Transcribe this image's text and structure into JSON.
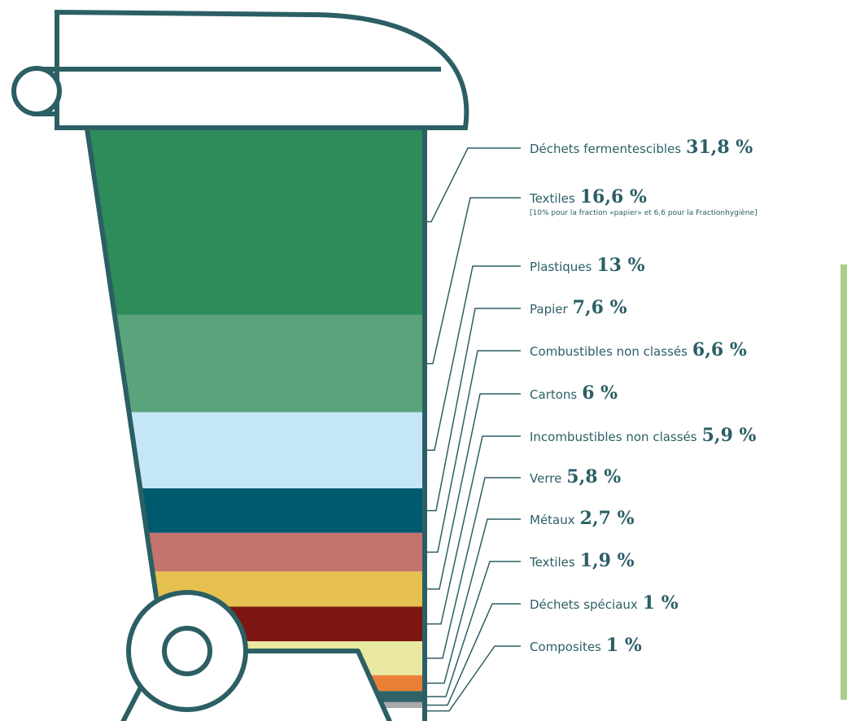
{
  "chart_data": {
    "type": "stack",
    "categories": [
      "Déchets fermentescibles",
      "Textiles",
      "Plastiques",
      "Papier",
      "Combustibles non classés",
      "Cartons",
      "Incombustibles non classés",
      "Verre",
      "Métaux",
      "Textiles",
      "Déchets spéciaux",
      "Composites"
    ],
    "values": [
      31.8,
      16.6,
      13,
      7.6,
      6.6,
      6,
      5.9,
      5.8,
      2.7,
      1.9,
      1,
      1
    ],
    "value_labels": [
      "31,8 %",
      "16,6 %",
      "13 %",
      "7,6 %",
      "6,6 %",
      "6 %",
      "5,9 %",
      "5,8 %",
      "2,7 %",
      "1,9 %",
      "1 %",
      "1 %"
    ],
    "colors": [
      "#2e8b5a",
      "#5ba37b",
      "#c5e6f7",
      "#005a6e",
      "#c4736e",
      "#e6c050",
      "#7b1612",
      "#e8e8a0",
      "#ea7f37",
      "#2f6368",
      "#aaaaaa",
      "#ffffff"
    ],
    "annotation": "[10% pour la fraction «papier» et 6,6 pour la Fractionhygiène]"
  }
}
